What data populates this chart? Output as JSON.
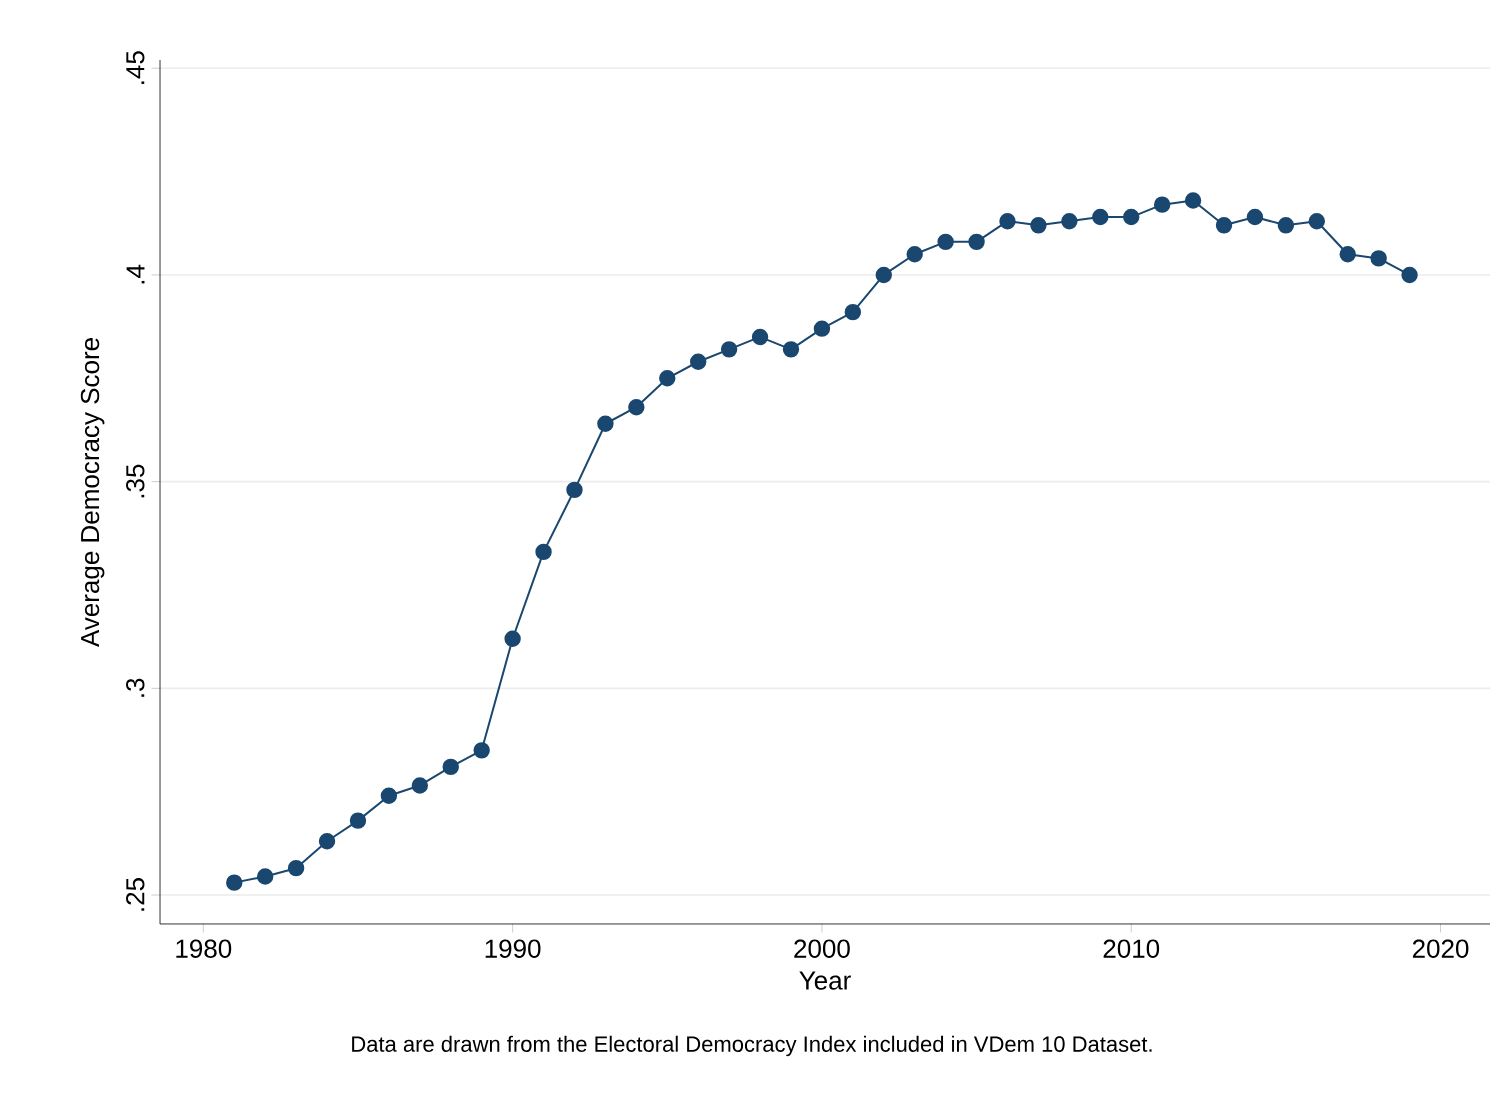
{
  "chart_data": {
    "type": "line",
    "xlabel": "Year",
    "ylabel": "Average Democracy Score",
    "annotations": [
      "Data are drawn from the Electoral Democracy Index included in VDem 10 Dataset."
    ],
    "x": [
      1981,
      1982,
      1983,
      1984,
      1985,
      1986,
      1987,
      1988,
      1989,
      1990,
      1991,
      1992,
      1993,
      1994,
      1995,
      1996,
      1997,
      1998,
      1999,
      2000,
      2001,
      2002,
      2003,
      2004,
      2005,
      2006,
      2007,
      2008,
      2009,
      2010,
      2011,
      2012,
      2013,
      2014,
      2015,
      2016,
      2017,
      2018,
      2019
    ],
    "series": [
      {
        "color": "#1a476f",
        "values": [
          0.253,
          0.2545,
          0.2565,
          0.263,
          0.268,
          0.274,
          0.2765,
          0.281,
          0.285,
          0.312,
          0.333,
          0.348,
          0.364,
          0.368,
          0.375,
          0.379,
          0.382,
          0.385,
          0.382,
          0.387,
          0.391,
          0.4,
          0.405,
          0.408,
          0.408,
          0.413,
          0.412,
          0.413,
          0.414,
          0.414,
          0.417,
          0.418,
          0.412,
          0.414,
          0.412,
          0.413,
          0.405,
          0.404,
          0.4
        ]
      }
    ],
    "xlim": [
      1978.6,
      2021.6
    ],
    "ylim": [
      0.243,
      0.452
    ],
    "xticks": [
      1980,
      1990,
      2000,
      2010,
      2020
    ],
    "yticks": [
      {
        "value": 0.25,
        "label": ".25"
      },
      {
        "value": 0.3,
        "label": ".3"
      },
      {
        "value": 0.35,
        "label": ".35"
      },
      {
        "value": 0.4,
        "label": ".4"
      },
      {
        "value": 0.45,
        "label": ".45"
      }
    ],
    "grid": "y",
    "marker": "circle",
    "line_style": "solid"
  }
}
